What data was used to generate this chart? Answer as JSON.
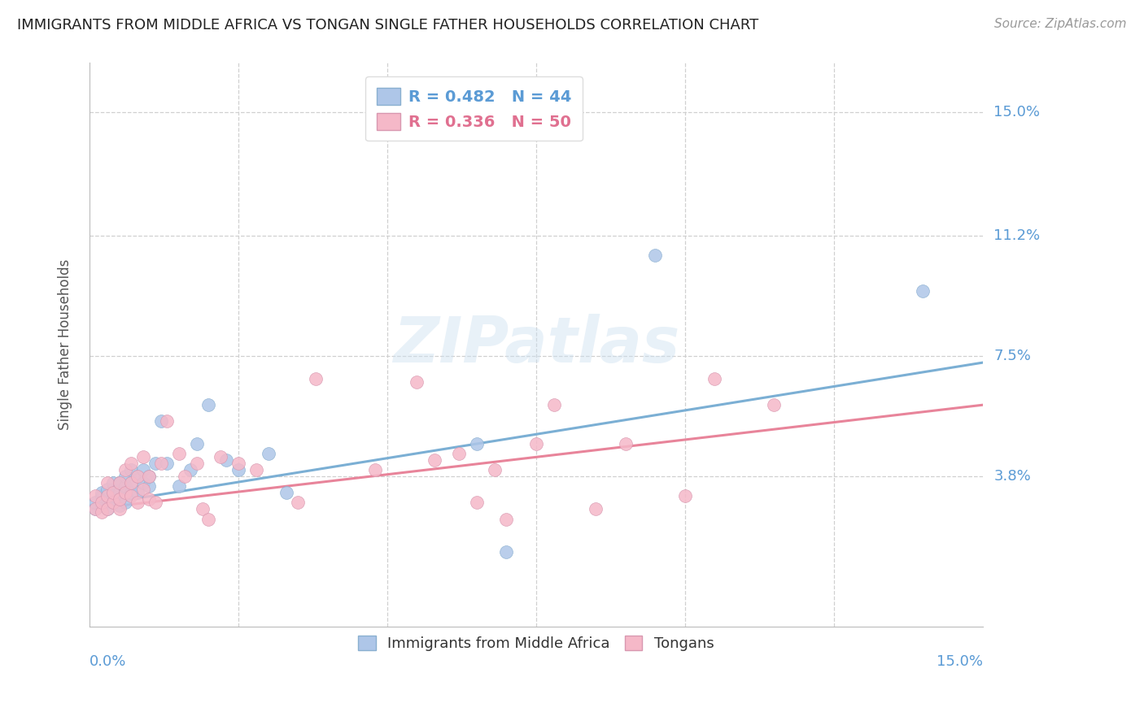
{
  "title": "IMMIGRANTS FROM MIDDLE AFRICA VS TONGAN SINGLE FATHER HOUSEHOLDS CORRELATION CHART",
  "source": "Source: ZipAtlas.com",
  "ylabel": "Single Father Households",
  "ytick_vals": [
    0.038,
    0.075,
    0.112,
    0.15
  ],
  "ytick_labels": [
    "3.8%",
    "7.5%",
    "11.2%",
    "15.0%"
  ],
  "xtick_vals": [
    0.0,
    0.025,
    0.05,
    0.075,
    0.1,
    0.125,
    0.15
  ],
  "xlim": [
    0.0,
    0.15
  ],
  "ylim": [
    -0.008,
    0.165
  ],
  "color_blue": "#aec6e8",
  "color_pink": "#f5b8c8",
  "color_blue_line": "#7bafd4",
  "color_pink_line": "#e8849a",
  "color_blue_text": "#5b9bd5",
  "color_pink_text": "#e07090",
  "color_grid": "#d0d0d0",
  "watermark": "ZIPatlas",
  "blue_scatter_x": [
    0.001,
    0.001,
    0.002,
    0.002,
    0.002,
    0.003,
    0.003,
    0.003,
    0.004,
    0.004,
    0.004,
    0.004,
    0.005,
    0.005,
    0.005,
    0.005,
    0.006,
    0.006,
    0.006,
    0.006,
    0.007,
    0.007,
    0.007,
    0.008,
    0.008,
    0.009,
    0.009,
    0.01,
    0.01,
    0.011,
    0.012,
    0.013,
    0.015,
    0.017,
    0.018,
    0.02,
    0.023,
    0.025,
    0.03,
    0.033,
    0.065,
    0.07,
    0.095,
    0.14
  ],
  "blue_scatter_y": [
    0.028,
    0.03,
    0.029,
    0.032,
    0.033,
    0.028,
    0.031,
    0.034,
    0.03,
    0.032,
    0.034,
    0.036,
    0.029,
    0.031,
    0.033,
    0.036,
    0.03,
    0.033,
    0.035,
    0.038,
    0.033,
    0.036,
    0.04,
    0.033,
    0.038,
    0.036,
    0.04,
    0.035,
    0.038,
    0.042,
    0.055,
    0.042,
    0.035,
    0.04,
    0.048,
    0.06,
    0.043,
    0.04,
    0.045,
    0.033,
    0.048,
    0.015,
    0.106,
    0.095
  ],
  "pink_scatter_x": [
    0.001,
    0.001,
    0.002,
    0.002,
    0.003,
    0.003,
    0.003,
    0.004,
    0.004,
    0.005,
    0.005,
    0.005,
    0.006,
    0.006,
    0.007,
    0.007,
    0.007,
    0.008,
    0.008,
    0.009,
    0.009,
    0.01,
    0.01,
    0.011,
    0.012,
    0.013,
    0.015,
    0.016,
    0.018,
    0.019,
    0.02,
    0.022,
    0.025,
    0.028,
    0.035,
    0.038,
    0.048,
    0.055,
    0.058,
    0.062,
    0.065,
    0.068,
    0.07,
    0.075,
    0.078,
    0.085,
    0.09,
    0.1,
    0.105,
    0.115
  ],
  "pink_scatter_y": [
    0.028,
    0.032,
    0.027,
    0.03,
    0.028,
    0.032,
    0.036,
    0.03,
    0.033,
    0.028,
    0.031,
    0.036,
    0.033,
    0.04,
    0.032,
    0.036,
    0.042,
    0.03,
    0.038,
    0.034,
    0.044,
    0.031,
    0.038,
    0.03,
    0.042,
    0.055,
    0.045,
    0.038,
    0.042,
    0.028,
    0.025,
    0.044,
    0.042,
    0.04,
    0.03,
    0.068,
    0.04,
    0.067,
    0.043,
    0.045,
    0.03,
    0.04,
    0.025,
    0.048,
    0.06,
    0.028,
    0.048,
    0.032,
    0.068,
    0.06
  ],
  "blue_line_x0": 0.0,
  "blue_line_x1": 0.15,
  "blue_line_y0": 0.029,
  "blue_line_y1": 0.073,
  "pink_line_x0": 0.0,
  "pink_line_x1": 0.15,
  "pink_line_y0": 0.028,
  "pink_line_y1": 0.06
}
